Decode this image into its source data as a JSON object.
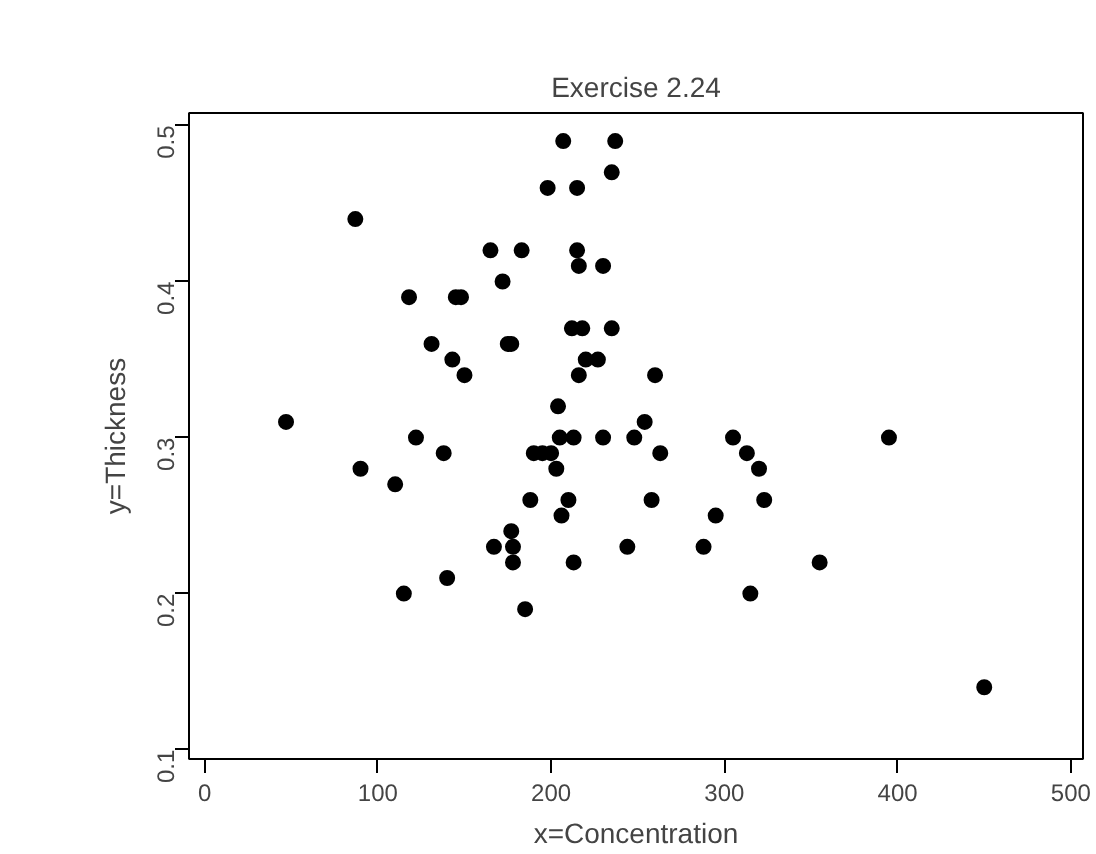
{
  "chart_data": {
    "type": "scatter",
    "title": "Exercise 2.24",
    "xlabel": "x=Concentration",
    "ylabel": "y=Thickness",
    "x": [
      47,
      87,
      90,
      110,
      115,
      118,
      122,
      131,
      138,
      140,
      143,
      145,
      148,
      150,
      165,
      167,
      172,
      175,
      177,
      177,
      178,
      178,
      183,
      185,
      188,
      190,
      195,
      198,
      200,
      203,
      204,
      205,
      206,
      207,
      210,
      212,
      213,
      213,
      215,
      215,
      216,
      216,
      218,
      220,
      227,
      230,
      230,
      235,
      235,
      237,
      244,
      248,
      254,
      258,
      260,
      263,
      288,
      295,
      305,
      313,
      315,
      320,
      323,
      355,
      395,
      450
    ],
    "values": [
      0.31,
      0.44,
      0.28,
      0.27,
      0.2,
      0.39,
      0.3,
      0.36,
      0.29,
      0.21,
      0.35,
      0.39,
      0.39,
      0.34,
      0.42,
      0.23,
      0.4,
      0.36,
      0.36,
      0.24,
      0.23,
      0.22,
      0.42,
      0.19,
      0.26,
      0.29,
      0.29,
      0.46,
      0.29,
      0.28,
      0.32,
      0.3,
      0.25,
      0.49,
      0.26,
      0.37,
      0.3,
      0.22,
      0.46,
      0.42,
      0.41,
      0.34,
      0.37,
      0.35,
      0.35,
      0.41,
      0.3,
      0.37,
      0.47,
      0.49,
      0.23,
      0.3,
      0.31,
      0.26,
      0.34,
      0.29,
      0.23,
      0.25,
      0.3,
      0.29,
      0.2,
      0.28,
      0.26,
      0.22,
      0.3,
      0.14
    ],
    "color": "#000000",
    "marker": "circle",
    "xlim": [
      -9,
      507
    ],
    "ylim": [
      0.094,
      0.508
    ],
    "xticks": [
      0,
      100,
      200,
      300,
      400,
      500
    ],
    "yticks": [
      0.1,
      0.2,
      0.3,
      0.4,
      0.5
    ],
    "grid": false
  }
}
